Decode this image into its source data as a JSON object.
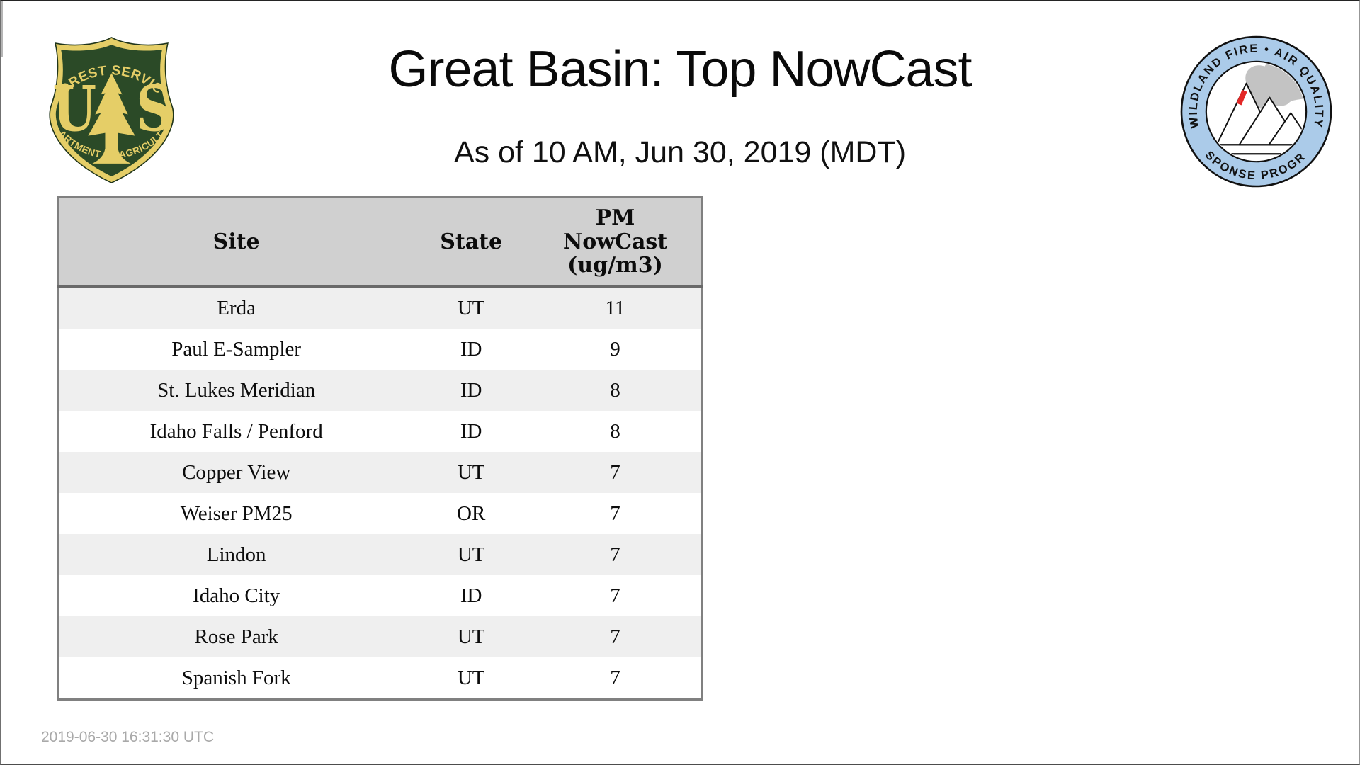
{
  "header": {
    "title": "Great Basin: Top NowCast",
    "subtitle": "As of 10 AM, Jun 30, 2019 (MDT)"
  },
  "footer": {
    "timestamp": "2019-06-30 16:31:30 UTC"
  },
  "logos": {
    "forest_service": {
      "top_text": "FOREST SERVICE",
      "letter_u": "U",
      "letter_s": "S",
      "bottom_text": "DEPARTMENT OF AGRICULTURE",
      "green": "#2b4a27",
      "gold": "#e5ce67"
    },
    "wfaqrp": {
      "top_text": "WILDLAND FIRE • AIR QUALITY",
      "bottom_text": "RESPONSE PROGRAM",
      "ring_color": "#abcbe9",
      "outline_color": "#111111",
      "smoke_color": "#c3c3c3",
      "flame_color": "#e32726"
    }
  },
  "table": {
    "headers": [
      "Site",
      "State",
      "PM NowCast (ug/m3)"
    ],
    "header_pm_lines": [
      "PM",
      "NowCast",
      "(ug/m3)"
    ],
    "header_bg": "#d0d0d0",
    "row_alt_bg": "#efefef",
    "border_color": "#808080",
    "rows": [
      {
        "site": "Erda",
        "state": "UT",
        "nowcast": "11"
      },
      {
        "site": "Paul E-Sampler",
        "state": "ID",
        "nowcast": "9"
      },
      {
        "site": "St. Lukes Meridian",
        "state": "ID",
        "nowcast": "8"
      },
      {
        "site": "Idaho Falls / Penford",
        "state": "ID",
        "nowcast": "8"
      },
      {
        "site": "Copper View",
        "state": "UT",
        "nowcast": "7"
      },
      {
        "site": "Weiser PM25",
        "state": "OR",
        "nowcast": "7"
      },
      {
        "site": "Lindon",
        "state": "UT",
        "nowcast": "7"
      },
      {
        "site": "Idaho City",
        "state": "ID",
        "nowcast": "7"
      },
      {
        "site": "Rose Park",
        "state": "UT",
        "nowcast": "7"
      },
      {
        "site": "Spanish Fork",
        "state": "UT",
        "nowcast": "7"
      }
    ]
  },
  "chart_data": {
    "type": "table",
    "title": "Great Basin: Top NowCast",
    "subtitle": "As of 10 AM, Jun 30, 2019 (MDT)",
    "columns": [
      "Site",
      "State",
      "PM NowCast (ug/m3)"
    ],
    "rows": [
      [
        "Erda",
        "UT",
        11
      ],
      [
        "Paul E-Sampler",
        "ID",
        9
      ],
      [
        "St. Lukes Meridian",
        "ID",
        8
      ],
      [
        "Idaho Falls / Penford",
        "ID",
        8
      ],
      [
        "Copper View",
        "UT",
        7
      ],
      [
        "Weiser PM25",
        "OR",
        7
      ],
      [
        "Lindon",
        "UT",
        7
      ],
      [
        "Idaho City",
        "ID",
        7
      ],
      [
        "Rose Park",
        "UT",
        7
      ],
      [
        "Spanish Fork",
        "UT",
        7
      ]
    ],
    "footnote": "2019-06-30 16:31:30 UTC"
  }
}
